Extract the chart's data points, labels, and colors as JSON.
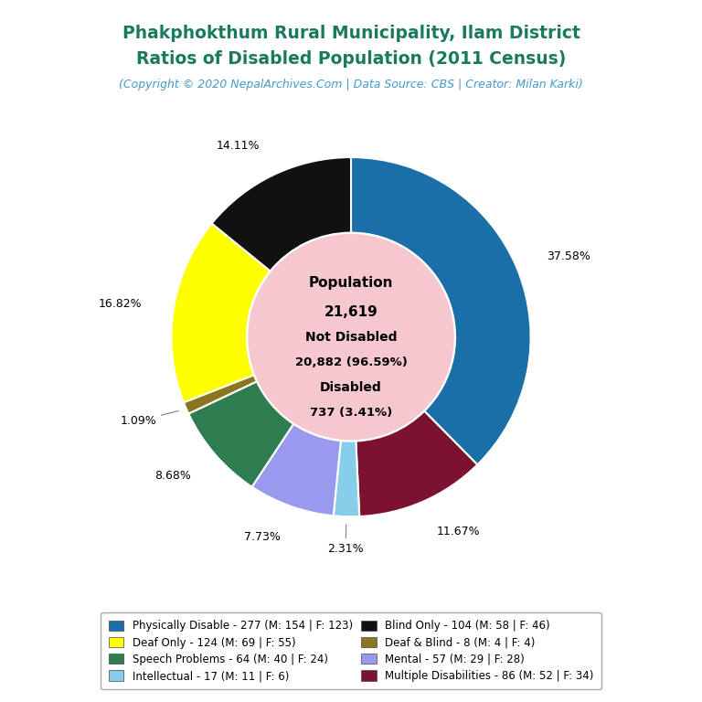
{
  "title_line1": "Phakphokthum Rural Municipality, Ilam District",
  "title_line2": "Ratios of Disabled Population (2011 Census)",
  "subtitle": "(Copyright © 2020 NepalArchives.Com | Data Source: CBS | Creator: Milan Karki)",
  "title_color": "#1a7a60",
  "subtitle_color": "#4499cc",
  "center_bg": "#f5c8d0",
  "slices": [
    {
      "label": "Physically Disable - 277 (M: 154 | F: 123)",
      "value": 277,
      "pct": "37.58%",
      "color": "#1a6fa8"
    },
    {
      "label": "Multiple Disabilities - 86 (M: 52 | F: 34)",
      "value": 86,
      "pct": "11.67%",
      "color": "#7b1230"
    },
    {
      "label": "Intellectual - 17 (M: 11 | F: 6)",
      "value": 17,
      "pct": "2.31%",
      "color": "#87ceeb"
    },
    {
      "label": "Mental - 57 (M: 29 | F: 28)",
      "value": 57,
      "pct": "7.73%",
      "color": "#9999ee"
    },
    {
      "label": "Speech Problems - 64 (M: 40 | F: 24)",
      "value": 64,
      "pct": "8.68%",
      "color": "#2e7d50"
    },
    {
      "label": "Deaf & Blind - 8 (M: 4 | F: 4)",
      "value": 8,
      "pct": "1.09%",
      "color": "#8b7520"
    },
    {
      "label": "Deaf Only - 124 (M: 69 | F: 55)",
      "value": 124,
      "pct": "16.82%",
      "color": "#ffff00"
    },
    {
      "label": "Blind Only - 104 (M: 58 | F: 46)",
      "value": 104,
      "pct": "14.11%",
      "color": "#111111"
    }
  ],
  "center_lines": [
    "Population",
    "21,619",
    "",
    "Not Disabled",
    "20,882 (96.59%)",
    "",
    "Disabled",
    "737 (3.41%)"
  ],
  "legend_order": [
    "Physically Disable - 277 (M: 154 | F: 123)",
    "Deaf Only - 124 (M: 69 | F: 55)",
    "Speech Problems - 64 (M: 40 | F: 24)",
    "Intellectual - 17 (M: 11 | F: 6)",
    "Blind Only - 104 (M: 58 | F: 46)",
    "Deaf & Blind - 8 (M: 4 | F: 4)",
    "Mental - 57 (M: 29 | F: 28)",
    "Multiple Disabilities - 86 (M: 52 | F: 34)"
  ],
  "legend_colors": {
    "Physically Disable - 277 (M: 154 | F: 123)": "#1a6fa8",
    "Deaf Only - 124 (M: 69 | F: 55)": "#ffff00",
    "Speech Problems - 64 (M: 40 | F: 24)": "#2e7d50",
    "Intellectual - 17 (M: 11 | F: 6)": "#87ceeb",
    "Blind Only - 104 (M: 58 | F: 46)": "#111111",
    "Deaf & Blind - 8 (M: 4 | F: 4)": "#8b7520",
    "Mental - 57 (M: 29 | F: 28)": "#9999ee",
    "Multiple Disabilities - 86 (M: 52 | F: 34)": "#7b1230"
  }
}
